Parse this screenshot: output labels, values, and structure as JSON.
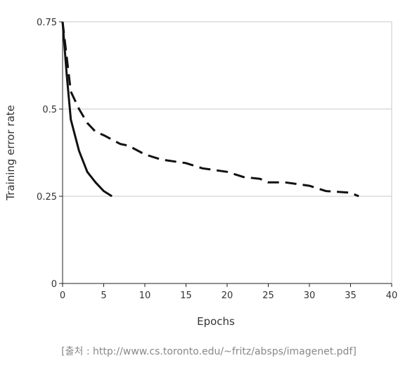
{
  "chart_data": {
    "type": "line",
    "x_label": "Epochs",
    "y_label": "Training error rate",
    "source": "[출처 : http://www.cs.toronto.edu/~fritz/absps/imagenet.pdf]",
    "xlim": [
      0,
      40
    ],
    "xticks": [
      0,
      5,
      10,
      15,
      20,
      25,
      30,
      35,
      40
    ],
    "ylim": [
      0,
      0.75
    ],
    "yticks": [
      0,
      0.25,
      0.5,
      0.75
    ],
    "grid": true,
    "series": [
      {
        "color": "#111111",
        "style": "solid",
        "x": [
          0,
          0.5,
          1,
          2,
          3,
          4,
          5,
          6
        ],
        "values": [
          0.75,
          0.6,
          0.47,
          0.38,
          0.32,
          0.29,
          0.265,
          0.25
        ]
      },
      {
        "color": "#111111",
        "style": "dashed",
        "x": [
          0,
          0.5,
          1,
          2,
          3,
          4,
          5,
          7,
          8,
          10,
          12,
          15,
          17,
          20,
          22,
          24,
          25,
          27,
          30,
          32,
          35,
          36
        ],
        "values": [
          0.75,
          0.65,
          0.55,
          0.5,
          0.46,
          0.435,
          0.425,
          0.4,
          0.395,
          0.37,
          0.355,
          0.345,
          0.33,
          0.32,
          0.305,
          0.3,
          0.29,
          0.29,
          0.28,
          0.265,
          0.26,
          0.25
        ]
      }
    ]
  }
}
